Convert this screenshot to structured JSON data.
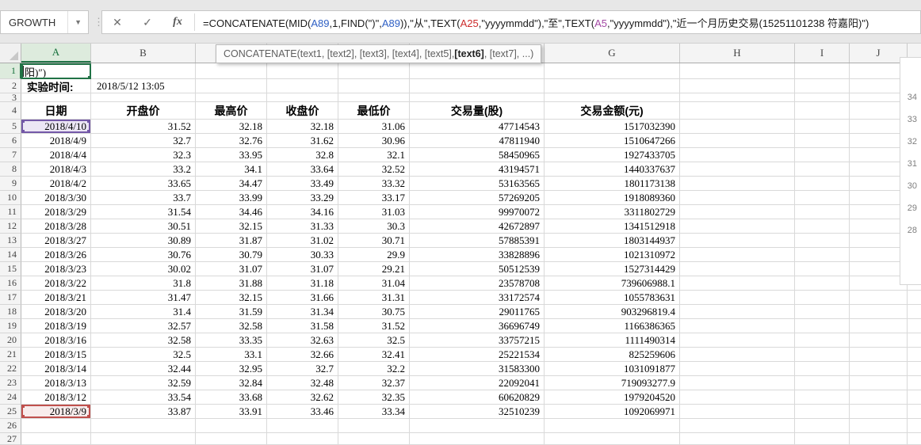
{
  "formula_bar": {
    "name_box": "GROWTH",
    "dropdown_icon": "▼",
    "grip_icon": "⋮",
    "cancel_label": "✕",
    "enter_label": "✓",
    "fx_label": "fx",
    "formula_segments": [
      {
        "text": "=CONCATENATE(MID(",
        "color": "black"
      },
      {
        "text": "A89",
        "color": "blue"
      },
      {
        "text": ",1,FIND(\")\",",
        "color": "black"
      },
      {
        "text": "A89",
        "color": "blue"
      },
      {
        "text": ")),\"从\",TEXT(",
        "color": "black"
      },
      {
        "text": "A25",
        "color": "red"
      },
      {
        "text": ",\"yyyymmdd\"),\"至\",TEXT(",
        "color": "black"
      },
      {
        "text": "A5",
        "color": "purple"
      },
      {
        "text": ",\"yyyymmdd\"),\"近一个月历史交易(15251101238 符嘉阳)\")",
        "color": "black"
      }
    ]
  },
  "function_tooltip": {
    "prefix": "CONCATENATE(text1, [text2], [text3], [text4], [text5], ",
    "bold": "[text6]",
    "suffix": ", [text7], ...)"
  },
  "sheet": {
    "column_letters": [
      "A",
      "B",
      "C",
      "D",
      "E",
      "F",
      "G",
      "H",
      "I",
      "J"
    ],
    "selected_column": "A",
    "selected_row": "1",
    "row_count": 27,
    "cell_a1_text": "阳)″)",
    "row2_label": "实验时间:",
    "row2_time": "2018/5/12 13:05",
    "table_headers": [
      "日期",
      "开盘价",
      "最高价",
      "收盘价",
      "最低价",
      "交易量(股)",
      "交易金额(元)"
    ],
    "records": [
      [
        "2018/4/10",
        "31.52",
        "32.18",
        "32.18",
        "31.06",
        "47714543",
        "1517032390"
      ],
      [
        "2018/4/9",
        "32.7",
        "32.76",
        "31.62",
        "30.96",
        "47811940",
        "1510647266"
      ],
      [
        "2018/4/4",
        "32.3",
        "33.95",
        "32.8",
        "32.1",
        "58450965",
        "1927433705"
      ],
      [
        "2018/4/3",
        "33.2",
        "34.1",
        "33.64",
        "32.52",
        "43194571",
        "1440337637"
      ],
      [
        "2018/4/2",
        "33.65",
        "34.47",
        "33.49",
        "33.32",
        "53163565",
        "1801173138"
      ],
      [
        "2018/3/30",
        "33.7",
        "33.99",
        "33.29",
        "33.17",
        "57269205",
        "1918089360"
      ],
      [
        "2018/3/29",
        "31.54",
        "34.46",
        "34.16",
        "31.03",
        "99970072",
        "3311802729"
      ],
      [
        "2018/3/28",
        "30.51",
        "32.15",
        "31.33",
        "30.3",
        "42672897",
        "1341512918"
      ],
      [
        "2018/3/27",
        "30.89",
        "31.87",
        "31.02",
        "30.71",
        "57885391",
        "1803144937"
      ],
      [
        "2018/3/26",
        "30.76",
        "30.79",
        "30.33",
        "29.9",
        "33828896",
        "1021310972"
      ],
      [
        "2018/3/23",
        "30.02",
        "31.07",
        "31.07",
        "29.21",
        "50512539",
        "1527314429"
      ],
      [
        "2018/3/22",
        "31.8",
        "31.88",
        "31.18",
        "31.04",
        "23578708",
        "739606988.1"
      ],
      [
        "2018/3/21",
        "31.47",
        "32.15",
        "31.66",
        "31.31",
        "33172574",
        "1055783631"
      ],
      [
        "2018/3/20",
        "31.4",
        "31.59",
        "31.34",
        "30.75",
        "29011765",
        "903296819.4"
      ],
      [
        "2018/3/19",
        "32.57",
        "32.58",
        "31.58",
        "31.52",
        "36696749",
        "1166386365"
      ],
      [
        "2018/3/16",
        "32.58",
        "33.35",
        "32.63",
        "32.5",
        "33757215",
        "1111490314"
      ],
      [
        "2018/3/15",
        "32.5",
        "33.1",
        "32.66",
        "32.41",
        "25221534",
        "825259606"
      ],
      [
        "2018/3/14",
        "32.44",
        "32.95",
        "32.7",
        "32.2",
        "31583300",
        "1031091877"
      ],
      [
        "2018/3/13",
        "32.59",
        "32.84",
        "32.48",
        "32.37",
        "22092041",
        "719093277.9"
      ],
      [
        "2018/3/12",
        "33.54",
        "33.68",
        "32.62",
        "32.35",
        "60620829",
        "1979204520"
      ],
      [
        "2018/3/9",
        "33.87",
        "33.91",
        "33.46",
        "33.34",
        "32510239",
        "1092069971"
      ]
    ],
    "purple_range_cell": "A5",
    "red_range_cell": "A25",
    "chart_panel": {
      "axis_labels": [
        "34",
        "33",
        "32",
        "31",
        "30",
        "29",
        "28"
      ]
    }
  },
  "colors": {
    "selection_green": "#217346",
    "range_purple": "#7458A8",
    "range_red": "#C0504D",
    "ref_blue": "#2E5FC4",
    "ref_red": "#CC2B2B",
    "ref_purple": "#A349A4"
  }
}
